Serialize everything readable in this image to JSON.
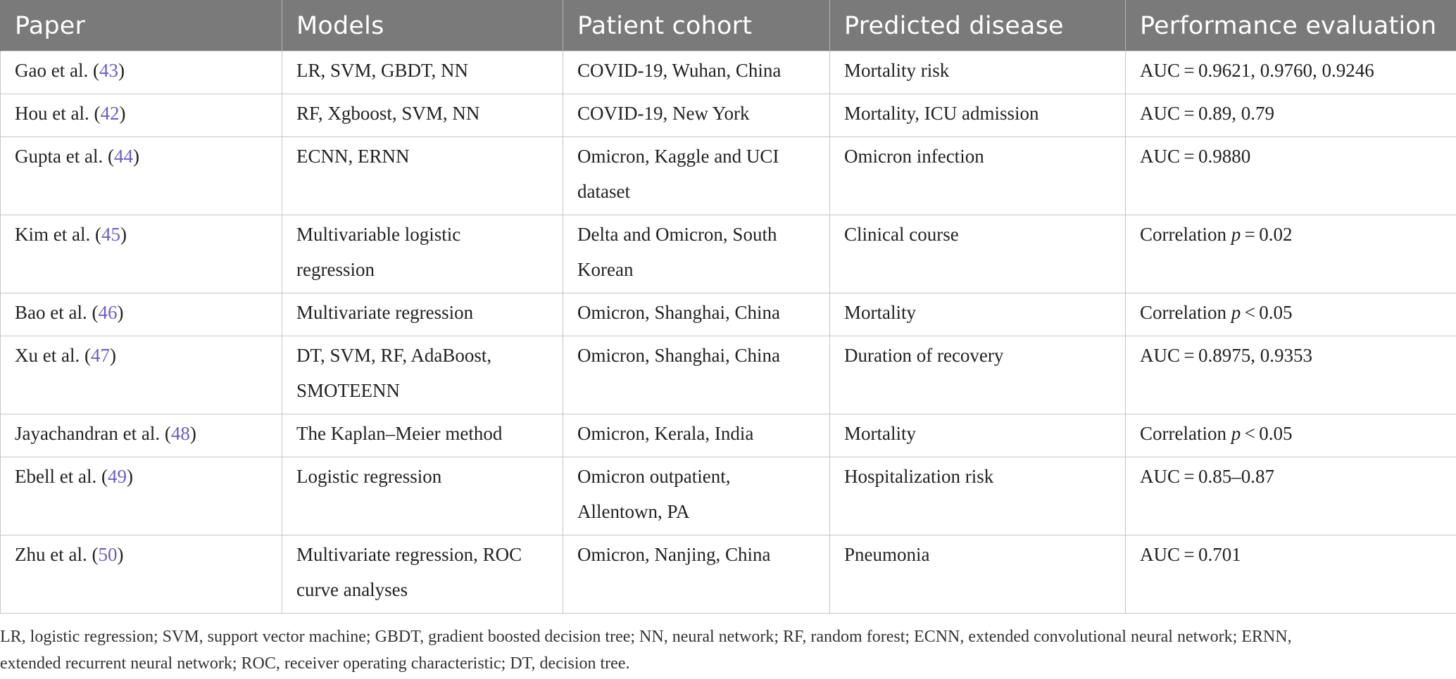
{
  "headers": [
    "Paper",
    "Models",
    "Patient cohort",
    "Predicted disease",
    "Performance evaluation"
  ],
  "rows": [
    {
      "author": "Gao et al. (",
      "ref": "43",
      "close": ")",
      "models": [
        "LR, SVM, GBDT, NN"
      ],
      "cohort": [
        "COVID-19, Wuhan, China"
      ],
      "disease": [
        "Mortality risk"
      ],
      "perf_a": "AUC = 0.9621, 0.9760, 0.9246",
      "perf_p": "",
      "perf_b": ""
    },
    {
      "author": "Hou et al. (",
      "ref": "42",
      "close": ")",
      "models": [
        "RF, Xgboost, SVM, NN"
      ],
      "cohort": [
        "COVID-19, New York"
      ],
      "disease": [
        "Mortality, ICU admission"
      ],
      "perf_a": "AUC = 0.89, 0.79",
      "perf_p": "",
      "perf_b": ""
    },
    {
      "author": "Gupta et al. (",
      "ref": "44",
      "close": ")",
      "models": [
        "ECNN, ERNN"
      ],
      "cohort": [
        "Omicron, Kaggle and UCI",
        "dataset"
      ],
      "disease": [
        "Omicron infection"
      ],
      "perf_a": "AUC = 0.9880",
      "perf_p": "",
      "perf_b": ""
    },
    {
      "author": "Kim et al. (",
      "ref": "45",
      "close": ")",
      "models": [
        "Multivariable logistic",
        "regression"
      ],
      "cohort": [
        "Delta and Omicron, South",
        "Korean"
      ],
      "disease": [
        "Clinical course"
      ],
      "perf_a": "Correlation ",
      "perf_p": "p",
      "perf_b": " = 0.02"
    },
    {
      "author": "Bao et al. (",
      "ref": "46",
      "close": ")",
      "models": [
        "Multivariate regression"
      ],
      "cohort": [
        "Omicron, Shanghai, China"
      ],
      "disease": [
        "Mortality"
      ],
      "perf_a": "Correlation ",
      "perf_p": "p",
      "perf_b": " < 0.05"
    },
    {
      "author": "Xu et al. (",
      "ref": "47",
      "close": ")",
      "models": [
        "DT, SVM, RF, AdaBoost,",
        "SMOTEENN"
      ],
      "cohort": [
        "Omicron, Shanghai, China"
      ],
      "disease": [
        "Duration of recovery"
      ],
      "perf_a": "AUC = 0.8975, 0.9353",
      "perf_p": "",
      "perf_b": ""
    },
    {
      "author": "Jayachandran et al. (",
      "ref": "48",
      "close": ")",
      "models": [
        "The Kaplan–Meier method"
      ],
      "cohort": [
        "Omicron, Kerala, India"
      ],
      "disease": [
        "Mortality"
      ],
      "perf_a": "Correlation ",
      "perf_p": "p",
      "perf_b": " < 0.05"
    },
    {
      "author": "Ebell et al. (",
      "ref": "49",
      "close": ")",
      "models": [
        "Logistic regression"
      ],
      "cohort": [
        "Omicron outpatient,",
        "Allentown, PA"
      ],
      "disease": [
        "Hospitalization risk"
      ],
      "perf_a": "AUC = 0.85–0.87",
      "perf_p": "",
      "perf_b": ""
    },
    {
      "author": "Zhu et al. (",
      "ref": "50",
      "close": ")",
      "models": [
        "Multivariate regression, ROC",
        "curve analyses"
      ],
      "cohort": [
        "Omicron, Nanjing, China"
      ],
      "disease": [
        "Pneumonia"
      ],
      "perf_a": "AUC = 0.701",
      "perf_p": "",
      "perf_b": ""
    }
  ],
  "footnote": [
    "LR, logistic regression; SVM, support vector machine; GBDT, gradient boosted decision tree; NN, neural network; RF, random forest; ECNN, extended convolutional neural network; ERNN,",
    "extended recurrent neural network; ROC, receiver operating characteristic; DT, decision tree."
  ]
}
